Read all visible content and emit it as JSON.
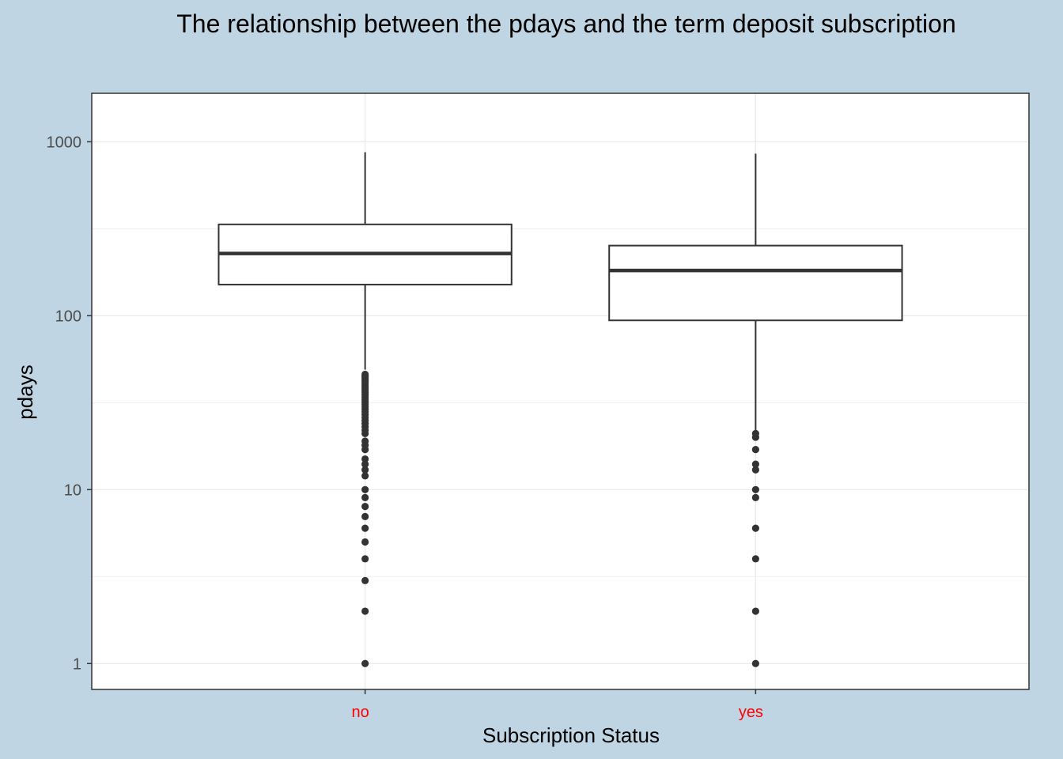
{
  "chart_data": {
    "type": "boxplot",
    "title": "The relationship between the pdays and the term deposit subscription",
    "xlabel": "Subscription Status",
    "ylabel": "pdays",
    "y_scale": "log10",
    "ylim": [
      0.71,
      1900
    ],
    "y_ticks": [
      1,
      10,
      100,
      1000
    ],
    "y_tick_labels": [
      "1",
      "10",
      "100",
      "1000"
    ],
    "categories": [
      "no",
      "yes"
    ],
    "grid": true,
    "boxes": [
      {
        "category": "no",
        "whisker_low": 49,
        "q1": 151,
        "median": 228,
        "q3": 335,
        "whisker_high": 871,
        "outliers": [
          1,
          2,
          3,
          4,
          5,
          6,
          7,
          8,
          9,
          10,
          12,
          13,
          14,
          15,
          17,
          18,
          19,
          21,
          22,
          23,
          24,
          25,
          26,
          27,
          28,
          29,
          30,
          31,
          32,
          33,
          34,
          35,
          36,
          37,
          38,
          39,
          40,
          41,
          42,
          43,
          44,
          45,
          46
        ]
      },
      {
        "category": "yes",
        "whisker_low": 21.5,
        "q1": 94,
        "median": 182,
        "q3": 253,
        "whisker_high": 854,
        "outliers": [
          1,
          2,
          4,
          6,
          9,
          10,
          13,
          14,
          17,
          20,
          21
        ]
      }
    ],
    "colors": {
      "background": "#bfd5e3",
      "panel": "#ffffff",
      "grid": "#ebebeb",
      "box_line": "#333333",
      "x_tick_label": "#ff0000",
      "y_tick_label": "#4d4d4d"
    }
  }
}
